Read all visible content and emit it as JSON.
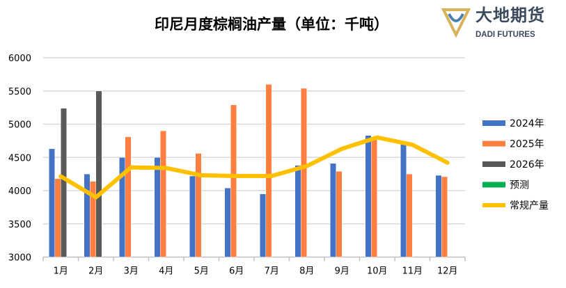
{
  "chart_data": {
    "type": "bar",
    "title": "印尼月度棕榈油产量（单位：千吨）",
    "xlabel": "",
    "ylabel": "",
    "ylim": [
      3000,
      6000
    ],
    "yticks": [
      3000,
      3500,
      4000,
      4500,
      5000,
      5500,
      6000
    ],
    "grid": true,
    "legend_position": "right",
    "categories": [
      "1月",
      "2月",
      "3月",
      "4月",
      "5月",
      "6月",
      "7月",
      "8月",
      "9月",
      "10月",
      "11月",
      "12月"
    ],
    "series": [
      {
        "name": "2024年",
        "type": "bar",
        "color": "#4472C4",
        "values": [
          4630,
          4250,
          4500,
          4500,
          4220,
          4040,
          3950,
          4380,
          4410,
          4830,
          4740,
          4230
        ]
      },
      {
        "name": "2025年",
        "type": "bar",
        "color": "#FF7F40",
        "values": [
          4180,
          4140,
          4810,
          4900,
          4560,
          5290,
          5600,
          5540,
          4290,
          4780,
          4250,
          4210
        ]
      },
      {
        "name": "2026年",
        "type": "bar",
        "color": "#595959",
        "values": [
          5240,
          5500,
          null,
          null,
          null,
          null,
          null,
          null,
          null,
          null,
          null,
          null
        ]
      },
      {
        "name": "预测",
        "type": "bar",
        "color": "#00B050",
        "values": [
          null,
          null,
          null,
          null,
          null,
          null,
          null,
          null,
          null,
          null,
          null,
          null
        ]
      },
      {
        "name": "常规产量",
        "type": "line",
        "color": "#FFC000",
        "values": [
          4215,
          3900,
          4350,
          4340,
          4230,
          4220,
          4220,
          4370,
          4630,
          4800,
          4690,
          4420
        ]
      }
    ]
  },
  "logo": {
    "cn": "大地期货",
    "en": "DADI FUTURES"
  }
}
